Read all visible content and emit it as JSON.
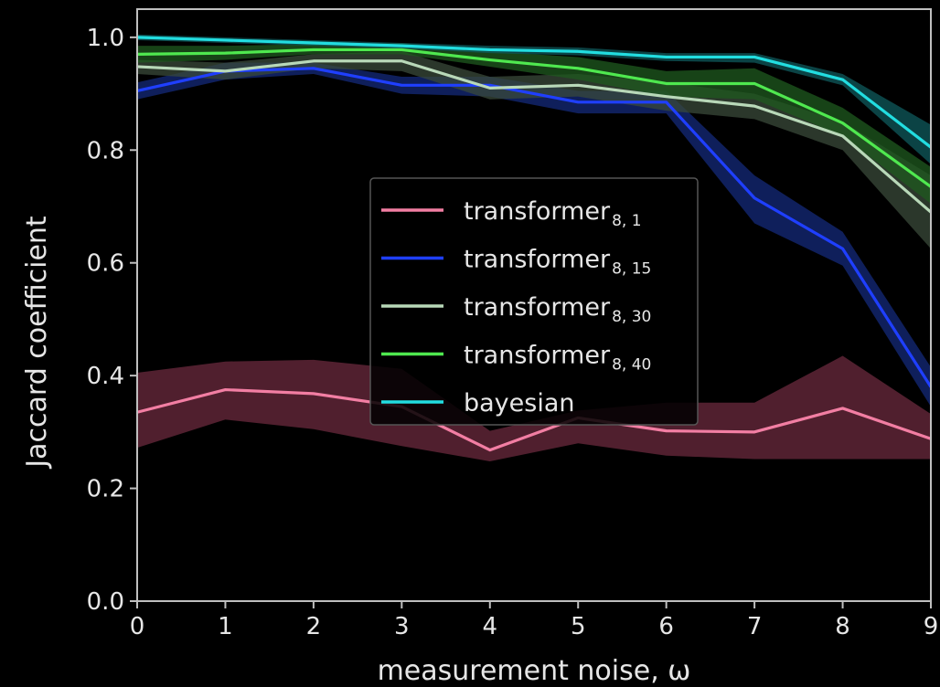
{
  "chart_data": {
    "type": "line",
    "title": "",
    "xlabel": "measurement noise, ω",
    "ylabel": "Jaccard coefficient",
    "xlim": [
      0,
      9
    ],
    "ylim": [
      0,
      1.05
    ],
    "xticks": [
      "0",
      "1",
      "2",
      "3",
      "4",
      "5",
      "6",
      "7",
      "8",
      "9"
    ],
    "yticks": [
      "0.0",
      "0.2",
      "0.4",
      "0.6",
      "0.8",
      "1.0"
    ],
    "grid": false,
    "legend_position": "center",
    "x": [
      0,
      1,
      2,
      3,
      4,
      5,
      6,
      7,
      8,
      9
    ],
    "series": [
      {
        "name": "transformer",
        "subscript": "8, 1",
        "color": "#f27ea3",
        "band_color": "#6b2a3d",
        "values": [
          0.335,
          0.375,
          0.368,
          0.345,
          0.268,
          0.325,
          0.302,
          0.3,
          0.342,
          0.288
        ],
        "lower": [
          0.272,
          0.322,
          0.305,
          0.275,
          0.248,
          0.28,
          0.258,
          0.252,
          0.252,
          0.252
        ],
        "upper": [
          0.405,
          0.425,
          0.428,
          0.412,
          0.302,
          0.338,
          0.352,
          0.352,
          0.435,
          0.332
        ]
      },
      {
        "name": "transformer",
        "subscript": "8, 15",
        "color": "#1f3fff",
        "band_color": "#142a7a",
        "values": [
          0.905,
          0.94,
          0.945,
          0.915,
          0.915,
          0.885,
          0.885,
          0.715,
          0.625,
          0.38
        ],
        "lower": [
          0.89,
          0.925,
          0.935,
          0.9,
          0.895,
          0.865,
          0.865,
          0.67,
          0.595,
          0.345
        ],
        "upper": [
          0.92,
          0.955,
          0.955,
          0.93,
          0.93,
          0.905,
          0.905,
          0.755,
          0.655,
          0.415
        ]
      },
      {
        "name": "transformer",
        "subscript": "8, 30",
        "color": "#b8d8b8",
        "band_color": "#3a4a3a",
        "values": [
          0.948,
          0.94,
          0.958,
          0.958,
          0.91,
          0.915,
          0.895,
          0.878,
          0.825,
          0.69
        ],
        "lower": [
          0.935,
          0.925,
          0.945,
          0.94,
          0.89,
          0.895,
          0.87,
          0.855,
          0.8,
          0.625
        ],
        "upper": [
          0.96,
          0.955,
          0.97,
          0.975,
          0.93,
          0.935,
          0.92,
          0.9,
          0.85,
          0.755
        ]
      },
      {
        "name": "transformer",
        "subscript": "8, 40",
        "color": "#4fe84f",
        "band_color": "#1f5a1f",
        "values": [
          0.97,
          0.972,
          0.978,
          0.978,
          0.96,
          0.945,
          0.918,
          0.918,
          0.848,
          0.735
        ],
        "lower": [
          0.955,
          0.96,
          0.97,
          0.97,
          0.948,
          0.925,
          0.895,
          0.89,
          0.825,
          0.705
        ],
        "upper": [
          0.985,
          0.985,
          0.988,
          0.99,
          0.975,
          0.965,
          0.94,
          0.945,
          0.875,
          0.77
        ]
      },
      {
        "name": "bayesian",
        "subscript": "",
        "color": "#22dde0",
        "band_color": "#0f5a5c",
        "values": [
          1.0,
          0.995,
          0.99,
          0.985,
          0.978,
          0.975,
          0.965,
          0.965,
          0.925,
          0.805
        ],
        "lower": [
          0.995,
          0.99,
          0.985,
          0.98,
          0.972,
          0.968,
          0.958,
          0.955,
          0.915,
          0.775
        ],
        "upper": [
          1.005,
          1.0,
          0.995,
          0.99,
          0.985,
          0.982,
          0.972,
          0.972,
          0.935,
          0.845
        ]
      }
    ]
  }
}
